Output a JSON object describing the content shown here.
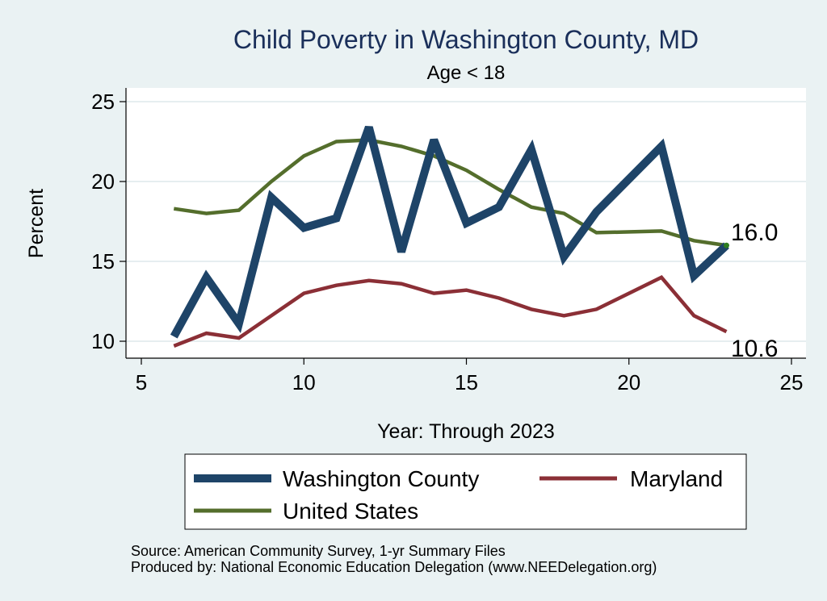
{
  "chart_data": {
    "type": "line",
    "title": "Child Poverty in Washington County, MD",
    "subtitle": "Age < 18",
    "xlabel": "Year: Through 2023",
    "ylabel": "Percent",
    "xlim": [
      5,
      25
    ],
    "ylim": [
      9,
      26
    ],
    "xticks": [
      5,
      10,
      15,
      20,
      25
    ],
    "yticks": [
      10,
      15,
      20,
      25
    ],
    "grid": true,
    "legend_position": "bottom",
    "x": [
      6,
      7,
      8,
      9,
      10,
      11,
      12,
      13,
      14,
      15,
      16,
      17,
      18,
      19,
      21,
      22,
      23
    ],
    "series": [
      {
        "name": "Washington County",
        "color": "#1e4468",
        "values": [
          10.3,
          14.0,
          11.1,
          19.0,
          17.1,
          17.7,
          23.4,
          15.6,
          22.6,
          17.4,
          18.4,
          22.0,
          15.3,
          18.1,
          22.2,
          14.1,
          16.0
        ]
      },
      {
        "name": "Maryland",
        "color": "#8b2f36",
        "values": [
          9.7,
          10.5,
          10.2,
          11.6,
          13.0,
          13.5,
          13.8,
          13.6,
          13.0,
          13.2,
          12.7,
          12.0,
          11.6,
          12.0,
          14.0,
          11.6,
          10.6
        ]
      },
      {
        "name": "United States",
        "color": "#546e2c",
        "values": [
          18.3,
          18.0,
          18.2,
          20.0,
          21.6,
          22.5,
          22.6,
          22.2,
          21.6,
          20.7,
          19.5,
          18.4,
          18.0,
          16.8,
          16.9,
          16.3,
          16.0
        ]
      }
    ],
    "end_labels": [
      "16.0",
      "10.6"
    ]
  },
  "notes": {
    "source": "Source: American Community Survey, 1-yr Summary Files",
    "produced": "Produced by: National Economic Education Delegation (www.NEEDelegation.org)"
  }
}
